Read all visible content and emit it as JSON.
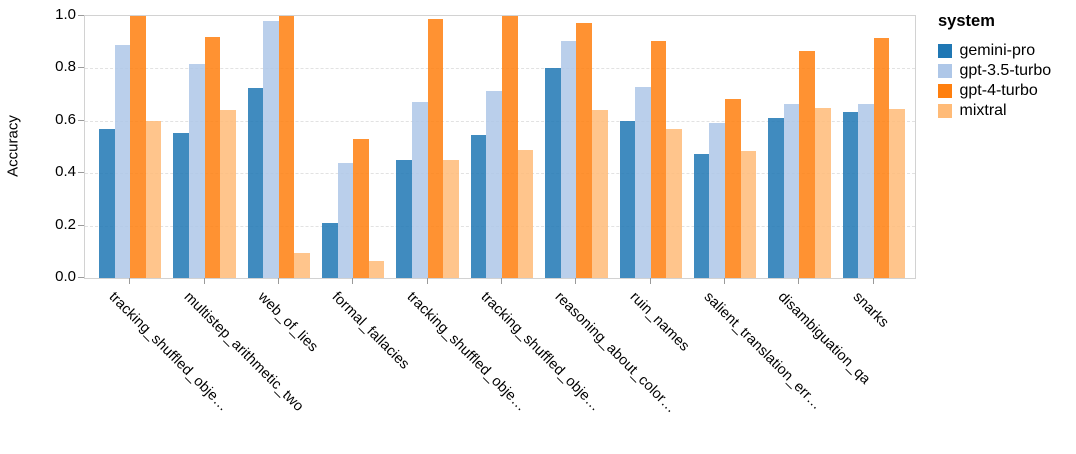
{
  "chart_data": {
    "type": "bar",
    "title": "",
    "xlabel": "",
    "ylabel": "Accuracy",
    "ylim": [
      0,
      1
    ],
    "yticks": [
      "0.0",
      "0.2",
      "0.4",
      "0.6",
      "0.8",
      "1.0"
    ],
    "grid": "horizontal-dashed",
    "legend_title": "system",
    "legend_position": "right",
    "categories": [
      "tracking_shuffled_obje…",
      "multistep_arithmetic_two",
      "web_of_lies",
      "formal_fallacies",
      "tracking_shuffled_obje…",
      "tracking_shuffled_obje…",
      "reasoning_about_color…",
      "ruin_names",
      "salient_translation_err…",
      "disambiguation_qa",
      "snarks"
    ],
    "series": [
      {
        "name": "gemini-pro",
        "color": "#1f77b4",
        "values": [
          0.57,
          0.555,
          0.725,
          0.21,
          0.45,
          0.545,
          0.8,
          0.6,
          0.475,
          0.61,
          0.635
        ]
      },
      {
        "name": "gpt-3.5-turbo",
        "color": "#aec7e8",
        "values": [
          0.89,
          0.815,
          0.98,
          0.44,
          0.67,
          0.715,
          0.905,
          0.73,
          0.59,
          0.665,
          0.665
        ]
      },
      {
        "name": "gpt-4-turbo",
        "color": "#ff7f0e",
        "values": [
          1.0,
          0.92,
          1.0,
          0.53,
          0.99,
          1.0,
          0.975,
          0.905,
          0.685,
          0.865,
          0.915
        ]
      },
      {
        "name": "mixtral",
        "color": "#ffbb78",
        "values": [
          0.6,
          0.64,
          0.095,
          0.065,
          0.45,
          0.49,
          0.64,
          0.57,
          0.485,
          0.65,
          0.645
        ]
      }
    ]
  }
}
